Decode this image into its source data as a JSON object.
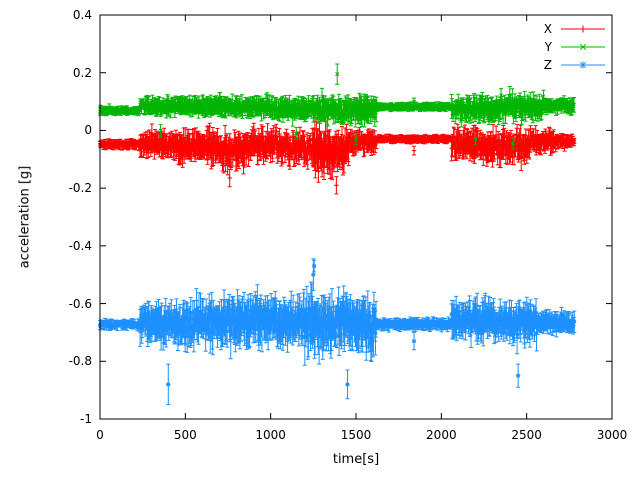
{
  "chart_data": {
    "type": "scatter",
    "title": "",
    "xlabel": "time[s]",
    "ylabel": "acceleration [g]",
    "xlim": [
      0,
      3000
    ],
    "ylim": [
      -1,
      0.4
    ],
    "xticks": [
      0,
      500,
      1000,
      1500,
      2000,
      2500,
      3000
    ],
    "yticks": [
      -1,
      -0.8,
      -0.6,
      -0.4,
      -0.2,
      0,
      0.2,
      0.4
    ],
    "grid": false,
    "legend_position": "top-right",
    "background": "#ffffff",
    "axis_color": "#000000",
    "style": "points-with-errorbars",
    "sample_step": 3,
    "seed": 42,
    "series": [
      {
        "name": "X",
        "color": "#ff0000",
        "marker": "plus",
        "segments": [
          [
            0,
            235,
            -0.048,
            0.008,
            0.012
          ],
          [
            235,
            460,
            -0.05,
            0.03,
            0.03
          ],
          [
            460,
            700,
            -0.055,
            0.04,
            0.035
          ],
          [
            700,
            850,
            -0.07,
            0.05,
            0.04
          ],
          [
            850,
            1100,
            -0.05,
            0.04,
            0.035
          ],
          [
            1100,
            1250,
            -0.06,
            0.045,
            0.035
          ],
          [
            1250,
            1460,
            -0.07,
            0.06,
            0.05
          ],
          [
            1460,
            1620,
            -0.04,
            0.03,
            0.025
          ],
          [
            1620,
            2060,
            -0.03,
            0.006,
            0.01
          ],
          [
            2060,
            2300,
            -0.05,
            0.04,
            0.035
          ],
          [
            2300,
            2520,
            -0.055,
            0.045,
            0.035
          ],
          [
            2520,
            2680,
            -0.04,
            0.03,
            0.025
          ],
          [
            2680,
            2780,
            -0.035,
            0.012,
            0.015
          ]
        ],
        "spikes": [
          [
            760,
            -0.165,
            0.03
          ],
          [
            1310,
            0.1,
            0.02
          ],
          [
            1385,
            -0.19,
            0.03
          ],
          [
            1840,
            -0.07,
            0.015
          ]
        ]
      },
      {
        "name": "Y",
        "color": "#00b400",
        "marker": "cross",
        "segments": [
          [
            0,
            235,
            0.068,
            0.008,
            0.01
          ],
          [
            235,
            700,
            0.085,
            0.02,
            0.022
          ],
          [
            700,
            1000,
            0.08,
            0.022,
            0.025
          ],
          [
            1000,
            1250,
            0.075,
            0.025,
            0.025
          ],
          [
            1250,
            1620,
            0.07,
            0.03,
            0.03
          ],
          [
            1620,
            2060,
            0.082,
            0.006,
            0.01
          ],
          [
            2060,
            2350,
            0.075,
            0.028,
            0.028
          ],
          [
            2350,
            2600,
            0.08,
            0.03,
            0.028
          ],
          [
            2600,
            2780,
            0.085,
            0.015,
            0.018
          ]
        ],
        "spikes": [
          [
            355,
            0.0,
            0.02
          ],
          [
            1150,
            -0.01,
            0.02
          ],
          [
            1390,
            0.195,
            0.035
          ],
          [
            1500,
            -0.03,
            0.02
          ],
          [
            1840,
            0.1,
            0.012
          ],
          [
            2200,
            -0.03,
            0.02
          ],
          [
            2420,
            -0.045,
            0.02
          ]
        ]
      },
      {
        "name": "Z",
        "color": "#1e90ff",
        "marker": "star",
        "segments": [
          [
            0,
            235,
            -0.672,
            0.008,
            0.012
          ],
          [
            235,
            460,
            -0.67,
            0.045,
            0.045
          ],
          [
            460,
            700,
            -0.665,
            0.055,
            0.05
          ],
          [
            700,
            1000,
            -0.66,
            0.06,
            0.055
          ],
          [
            1000,
            1200,
            -0.665,
            0.055,
            0.05
          ],
          [
            1200,
            1320,
            -0.67,
            0.08,
            0.07
          ],
          [
            1320,
            1620,
            -0.67,
            0.065,
            0.06
          ],
          [
            1620,
            2060,
            -0.672,
            0.01,
            0.014
          ],
          [
            2060,
            2300,
            -0.66,
            0.05,
            0.045
          ],
          [
            2300,
            2560,
            -0.665,
            0.05,
            0.045
          ],
          [
            2560,
            2780,
            -0.668,
            0.025,
            0.025
          ]
        ],
        "spikes": [
          [
            400,
            -0.88,
            0.07
          ],
          [
            1250,
            -0.5,
            0.055
          ],
          [
            1255,
            -0.47,
            0.02
          ],
          [
            1450,
            -0.88,
            0.05
          ],
          [
            1840,
            -0.73,
            0.03
          ],
          [
            2450,
            -0.85,
            0.04
          ]
        ]
      }
    ]
  }
}
